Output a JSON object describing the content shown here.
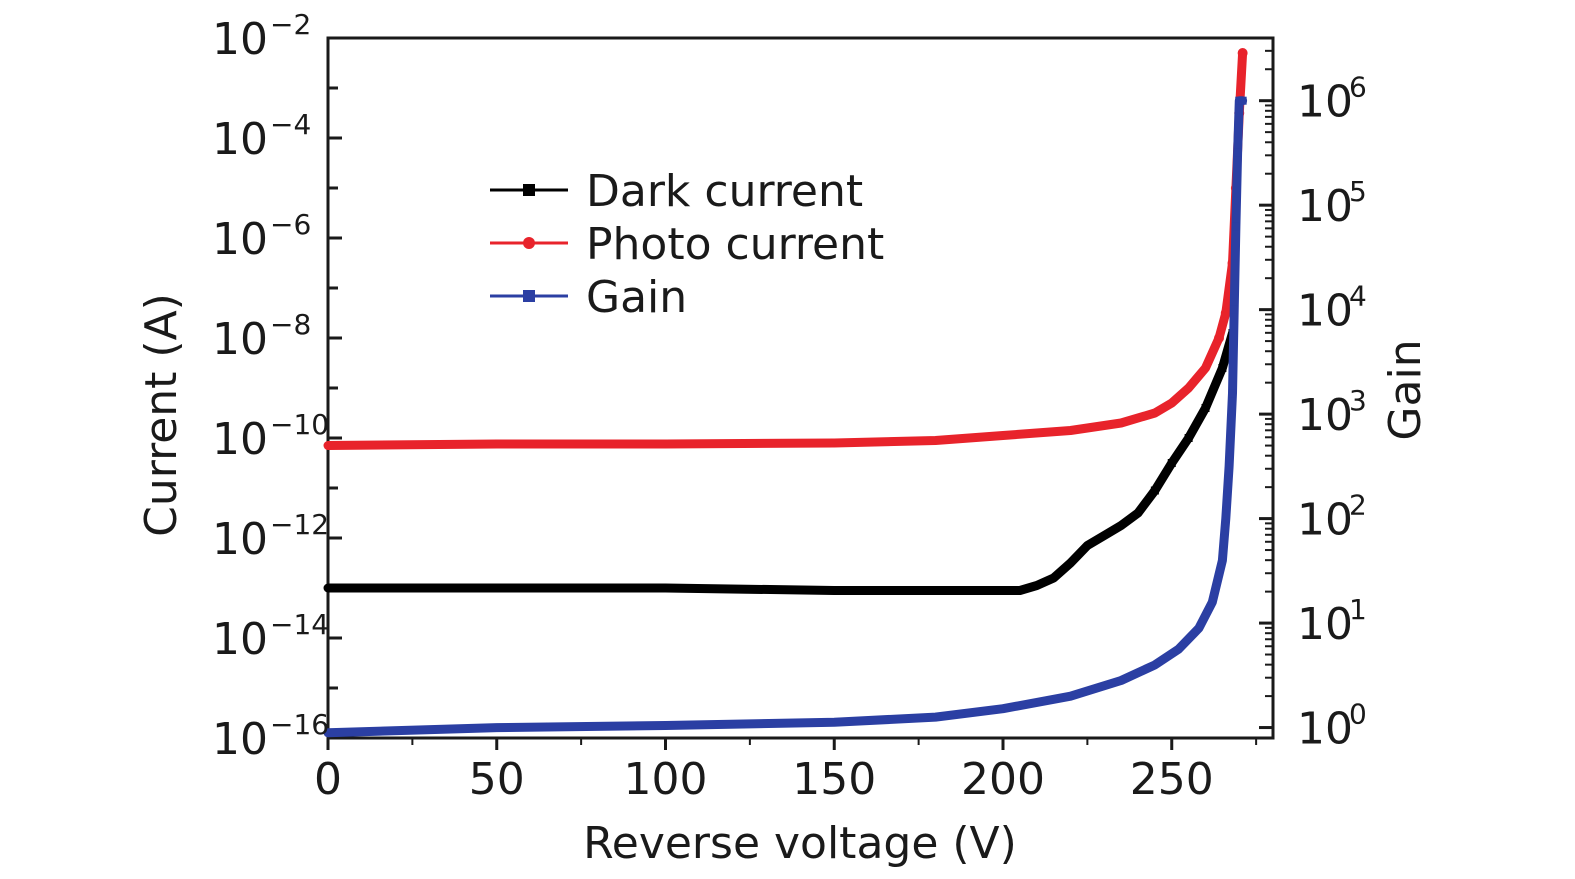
{
  "chart_data": {
    "type": "line",
    "title": "",
    "xlabel": "Reverse voltage (V)",
    "ylabel": "Current (A)",
    "y2label": "Gain",
    "xlim": [
      0,
      280
    ],
    "ylim_log10": [
      -16,
      -2
    ],
    "y2lim_log10": [
      -0.1,
      6.6
    ],
    "x_ticks": [
      0,
      50,
      100,
      150,
      200,
      250
    ],
    "x_tick_labels": [
      "0",
      "50",
      "100",
      "150",
      "200",
      "250"
    ],
    "y_ticks": [
      {
        "base": "10",
        "exp": "−2",
        "log": -2
      },
      {
        "base": "10",
        "exp": "−4",
        "log": -4
      },
      {
        "base": "10",
        "exp": "−6",
        "log": -6
      },
      {
        "base": "10",
        "exp": "−8",
        "log": -8
      },
      {
        "base": "10",
        "exp": "−10",
        "log": -10
      },
      {
        "base": "10",
        "exp": "−12",
        "log": -12
      },
      {
        "base": "10",
        "exp": "−14",
        "log": -14
      },
      {
        "base": "10",
        "exp": "−16",
        "log": -16
      }
    ],
    "y2_ticks": [
      {
        "base": "10",
        "exp": "6",
        "log": 6
      },
      {
        "base": "10",
        "exp": "5",
        "log": 5
      },
      {
        "base": "10",
        "exp": "4",
        "log": 4
      },
      {
        "base": "10",
        "exp": "3",
        "log": 3
      },
      {
        "base": "10",
        "exp": "2",
        "log": 2
      },
      {
        "base": "10",
        "exp": "1",
        "log": 1
      },
      {
        "base": "10",
        "exp": "0",
        "log": 0
      }
    ],
    "legend_position": "upper-left",
    "series": [
      {
        "name": "Dark current",
        "axis": "left",
        "color": "#000000",
        "marker": "square",
        "points": [
          [
            0,
            -13.0
          ],
          [
            50,
            -13.0
          ],
          [
            100,
            -13.0
          ],
          [
            150,
            -13.05
          ],
          [
            190,
            -13.05
          ],
          [
            205,
            -13.05
          ],
          [
            210,
            -12.95
          ],
          [
            215,
            -12.8
          ],
          [
            220,
            -12.5
          ],
          [
            225,
            -12.15
          ],
          [
            230,
            -11.95
          ],
          [
            235,
            -11.75
          ],
          [
            240,
            -11.5
          ],
          [
            245,
            -11.05
          ],
          [
            250,
            -10.5
          ],
          [
            255,
            -10.0
          ],
          [
            260,
            -9.4
          ],
          [
            265,
            -8.6
          ],
          [
            268,
            -7.9
          ]
        ]
      },
      {
        "name": "Photo current",
        "axis": "left",
        "color": "#e8232b",
        "marker": "circle",
        "points": [
          [
            0,
            -10.15
          ],
          [
            50,
            -10.12
          ],
          [
            100,
            -10.12
          ],
          [
            150,
            -10.1
          ],
          [
            180,
            -10.05
          ],
          [
            200,
            -9.95
          ],
          [
            220,
            -9.85
          ],
          [
            235,
            -9.7
          ],
          [
            245,
            -9.5
          ],
          [
            250,
            -9.3
          ],
          [
            255,
            -9.0
          ],
          [
            260,
            -8.6
          ],
          [
            264,
            -8.0
          ],
          [
            266,
            -7.5
          ],
          [
            268,
            -6.5
          ],
          [
            269,
            -5.0
          ],
          [
            270,
            -3.5
          ],
          [
            271,
            -2.3
          ]
        ]
      },
      {
        "name": "Gain",
        "axis": "right",
        "color": "#2b3fa3",
        "marker": "square",
        "points": [
          [
            0,
            -0.05
          ],
          [
            50,
            0.0
          ],
          [
            100,
            0.02
          ],
          [
            150,
            0.05
          ],
          [
            180,
            0.1
          ],
          [
            200,
            0.18
          ],
          [
            220,
            0.3
          ],
          [
            235,
            0.45
          ],
          [
            245,
            0.6
          ],
          [
            252,
            0.75
          ],
          [
            258,
            0.95
          ],
          [
            262,
            1.2
          ],
          [
            265,
            1.6
          ],
          [
            266,
            2.0
          ],
          [
            267,
            2.5
          ],
          [
            268,
            3.2
          ],
          [
            268.5,
            4.0
          ],
          [
            269,
            4.8
          ],
          [
            269.5,
            5.5
          ],
          [
            270,
            6.0
          ],
          [
            271,
            6.0
          ]
        ]
      }
    ]
  }
}
